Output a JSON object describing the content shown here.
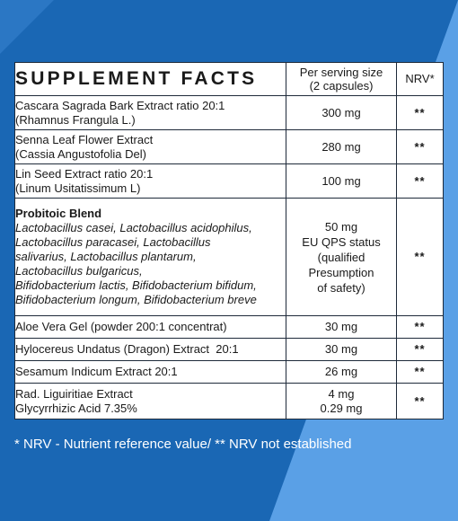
{
  "colors": {
    "bg_dark": "#1a67b4",
    "bg_light": "#5aa0e6",
    "table_border": "#1e2a3a",
    "text": "#1a1a1a"
  },
  "header": {
    "title": "SUPPLEMENT FACTS",
    "serving_line1": "Per serving size",
    "serving_line2": "(2 capsules)",
    "nrv": "NRV*"
  },
  "rows": [
    {
      "name1": "Cascara Sagrada Bark Extract ratio 20:1",
      "name2": "(Rhamnus Frangula L.)",
      "amount": "300 mg",
      "nrv": "**"
    },
    {
      "name1": "Senna Leaf Flower Extract",
      "name2": "(Cassia Angustofolia Del)",
      "amount": "280 mg",
      "nrv": "**"
    },
    {
      "name1": "Lin Seed Extract ratio 20:1",
      "name2": "(Linum Usitatissimum L)",
      "amount": "100 mg",
      "nrv": "**"
    }
  ],
  "blend": {
    "name": "Probitoic Blend",
    "lines": [
      "Lactobacillus casei, Lactobacillus acidophilus,",
      "Lactobacillus paracasei, Lactobacillus",
      "salivarius, Lactobacillus plantarum,",
      "Lactobacillus bulgaricus,",
      "Bifidobacterium lactis, Bifidobacterium bifidum,",
      "Bifidobacterium longum, Bifidobacterium breve"
    ],
    "amount_lines": [
      "50 mg",
      "EU QPS status",
      "(qualified",
      "Presumption",
      "of safety)"
    ],
    "nrv": "**"
  },
  "rows2": [
    {
      "name": "Aloe Vera Gel (powder 200:1 concentrat)",
      "amount": "30 mg",
      "nrv": "**"
    },
    {
      "name": "Hylocereus Undatus (Dragon) Extract  20:1",
      "amount": "30 mg",
      "nrv": "**"
    },
    {
      "name": "Sesamum Indicum Extract 20:1",
      "amount": "26 mg",
      "nrv": "**"
    }
  ],
  "last": {
    "name1": "Rad. Liguiritiae Extract",
    "name2": "Glycyrrhizic Acid 7.35%",
    "amount1": "4 mg",
    "amount2": "0.29 mg",
    "nrv": "**"
  },
  "footnote": "* NRV - Nutrient reference value/ ** NRV not established"
}
